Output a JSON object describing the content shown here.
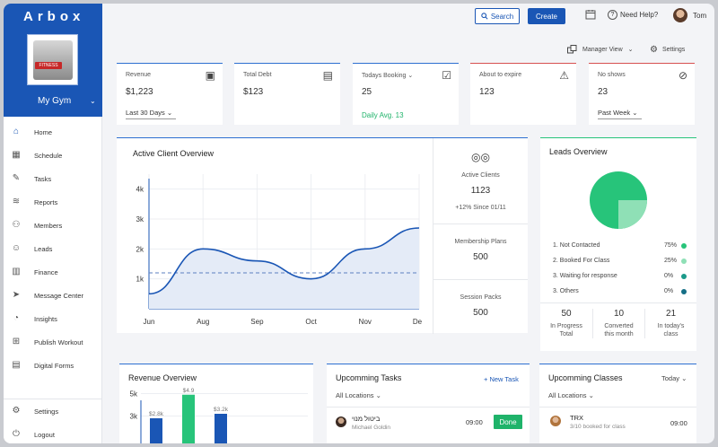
{
  "app": {
    "logo": "Arbox",
    "gym_name": "My Gym",
    "gym_badge": "FITNESS"
  },
  "sidebar": {
    "items": [
      {
        "label": "Home",
        "icon": "home-icon"
      },
      {
        "label": "Schedule",
        "icon": "calendar-icon"
      },
      {
        "label": "Tasks",
        "icon": "tasks-icon"
      },
      {
        "label": "Reports",
        "icon": "reports-icon"
      },
      {
        "label": "Members",
        "icon": "members-icon"
      },
      {
        "label": "Leads",
        "icon": "leads-icon"
      },
      {
        "label": "Finance",
        "icon": "finance-icon"
      },
      {
        "label": "Message Center",
        "icon": "message-icon"
      },
      {
        "label": "Insights",
        "icon": "insights-icon"
      },
      {
        "label": "Publish Workout",
        "icon": "dumbbell-icon"
      },
      {
        "label": "Digital Forms",
        "icon": "forms-icon"
      }
    ],
    "settings": "Settings",
    "logout": "Logout"
  },
  "topbar": {
    "search": "Search",
    "create": "Create",
    "help": "Need Help?",
    "user": "Tom"
  },
  "subbar": {
    "manager_view": "Manager View",
    "settings": "Settings"
  },
  "stats": {
    "revenue": {
      "title": "Revenue",
      "value": "$1,223",
      "select": "Last 30 Days"
    },
    "debt": {
      "title": "Total Debt",
      "value": "$123"
    },
    "booking": {
      "title": "Todays  Booking",
      "value": "25",
      "avg": "Daily Avg. 13"
    },
    "expire": {
      "title": "About to expire",
      "value": "123"
    },
    "noshow": {
      "title": "No shows",
      "value": "23",
      "select": "Past Week"
    }
  },
  "active_clients": {
    "title": "Active Client Overview",
    "side": {
      "active_label": "Active Clients",
      "active_value": "1123",
      "active_growth": "+12% Since 01/11",
      "plans_label": "Membership Plans",
      "plans_value": "500",
      "packs_label": "Session Packs",
      "packs_value": "500"
    }
  },
  "chart_data": {
    "type": "area",
    "categories": [
      "Jun",
      "Aug",
      "Sep",
      "Oct",
      "Nov",
      "Dec"
    ],
    "yticks": [
      "1k",
      "2k",
      "3k",
      "4k"
    ],
    "ylim": [
      0,
      4500
    ],
    "series": [
      {
        "values": [
          500,
          2000,
          1600,
          1000,
          2000,
          2700
        ]
      }
    ],
    "reference_line": 1200
  },
  "leads": {
    "title": "Leads Overview",
    "items": [
      {
        "label": "1. Not Contacted",
        "pct": "75%",
        "value": 75,
        "color": "#27c47a"
      },
      {
        "label": "2. Booked For Class",
        "pct": "25%",
        "value": 25,
        "color": "#8fe0b6"
      },
      {
        "label": "3. Waiting for response",
        "pct": "0%",
        "value": 0,
        "color": "#1b9a8a"
      },
      {
        "label": "3. Others",
        "pct": "0%",
        "value": 0,
        "color": "#156f86"
      }
    ],
    "stats": [
      {
        "n": "50",
        "l1": "In Progress",
        "l2": "Total"
      },
      {
        "n": "10",
        "l1": "Converted",
        "l2": "this month"
      },
      {
        "n": "21",
        "l1": "In today's",
        "l2": "class"
      }
    ]
  },
  "revenue_overview": {
    "title": "Revenue Overview",
    "yticks": [
      "5k",
      "3k"
    ],
    "bars": [
      {
        "label": "$2.8k",
        "value": 2.8,
        "color": "#1a56b5"
      },
      {
        "label": "$4.9",
        "value": 4.9,
        "color": "#27c47a"
      },
      {
        "label": "$3.2k",
        "value": 3.2,
        "color": "#1a56b5"
      }
    ]
  },
  "tasks": {
    "title": "Upcomming Tasks",
    "new": "+ New Task",
    "filter": "All Locations",
    "items": [
      {
        "name": "ביטול מנוי",
        "owner": "Michael Goldin",
        "time": "09:00",
        "action": "Done"
      }
    ]
  },
  "classes": {
    "title": "Upcomming Classes",
    "period": "Today",
    "filter": "All Locations",
    "items": [
      {
        "name": "TRX",
        "booked": "3/10 booked for class",
        "time": "09:00"
      }
    ]
  }
}
